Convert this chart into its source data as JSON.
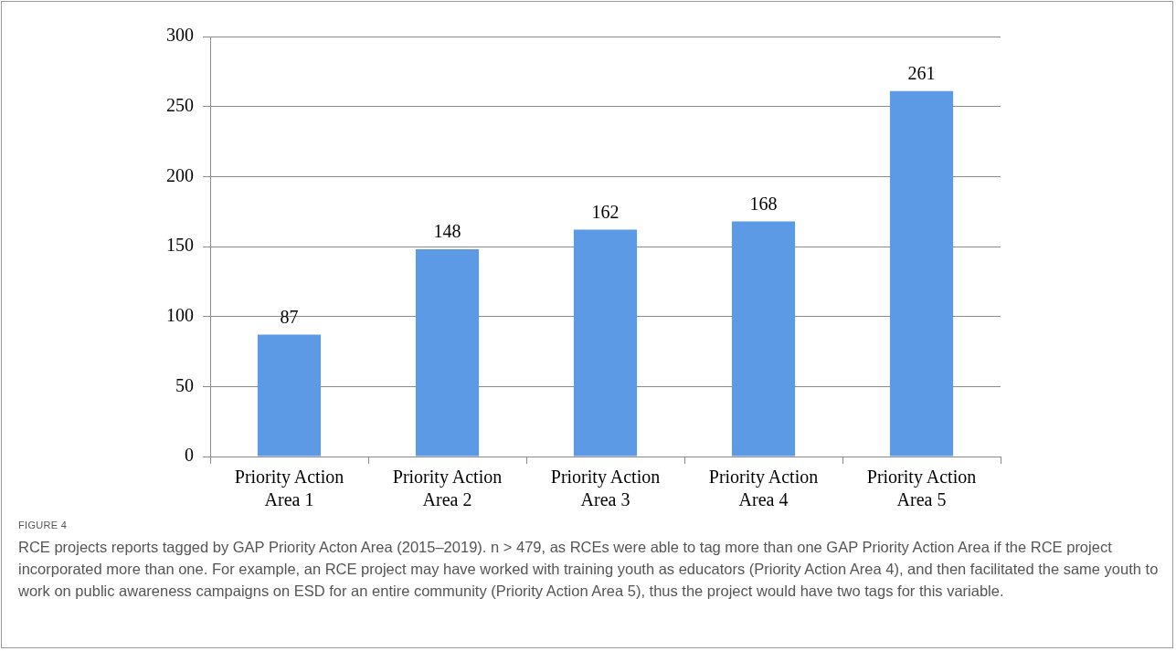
{
  "chart_data": {
    "type": "bar",
    "categories": [
      "Priority Action Area 1",
      "Priority Action Area 2",
      "Priority Action Area 3",
      "Priority Action Area 4",
      "Priority Action Area 5"
    ],
    "values": [
      87,
      148,
      162,
      168,
      261
    ],
    "color": "#5d9ae6",
    "ylim": [
      0,
      300
    ],
    "yticks": [
      0,
      50,
      100,
      150,
      200,
      250,
      300
    ],
    "grid": "y",
    "legend": false,
    "data_labels": true,
    "annotations": [
      "FIGURE 4",
      "RCE projects reports tagged by GAP Priority Acton Area (2015–2019). n > 479, as RCEs were able to tag more than one GAP Priority Action Area if the RCE project incorporated more than one. For example, an RCE project may have worked with training youth as educators (Priority Action Area 4), and then facilitated the same youth to work on public awareness campaigns on ESD for an entire community (Priority Action Area 5), thus the project would have two tags for this variable."
    ]
  }
}
